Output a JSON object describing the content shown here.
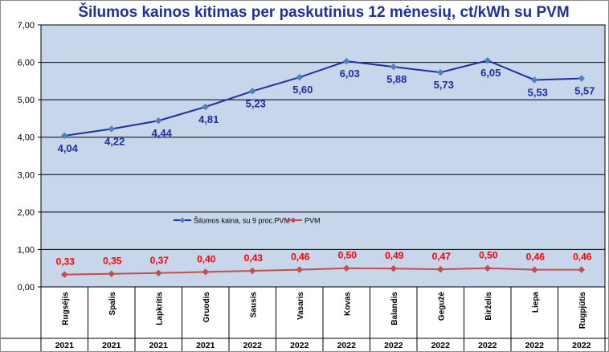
{
  "chart_data": {
    "type": "line",
    "title": "Šilumos kainos kitimas per paskutinius 12 mėnesių, ct/kWh su PVM",
    "categories": [
      "Rugsėjis",
      "Spalis",
      "Lapkritis",
      "Gruodis",
      "Sausis",
      "Vasaris",
      "Kovas",
      "Balandis",
      "Gegužė",
      "Birželis",
      "Liepa",
      "Rugpjūtis"
    ],
    "years": [
      "2021",
      "2021",
      "2021",
      "2021",
      "2022",
      "2022",
      "2022",
      "2022",
      "2022",
      "2022",
      "2022",
      "2022"
    ],
    "y_ticks": [
      "0,00",
      "1,00",
      "2,00",
      "3,00",
      "4,00",
      "5,00",
      "6,00",
      "7,00"
    ],
    "ylim": [
      0,
      7
    ],
    "grid": true,
    "legend_position": "middle-left",
    "plot_background": "#c7d6ea",
    "series": [
      {
        "name": "Šilumos kaina, su 9 proc.PVM",
        "color": "#1f2f9c",
        "marker_color": "#4f81bd",
        "values": [
          4.04,
          4.22,
          4.44,
          4.81,
          5.23,
          5.6,
          6.03,
          5.88,
          5.73,
          6.05,
          5.53,
          5.57
        ],
        "labels": [
          "4,04",
          "4,22",
          "4,44",
          "4,81",
          "5,23",
          "5,60",
          "6,03",
          "5,88",
          "5,73",
          "6,05",
          "5,53",
          "5,57"
        ],
        "label_color": "#1f2f9c"
      },
      {
        "name": "PVM",
        "color": "#c0504d",
        "marker_color": "#c0504d",
        "values": [
          0.33,
          0.35,
          0.37,
          0.4,
          0.43,
          0.46,
          0.5,
          0.49,
          0.47,
          0.5,
          0.46,
          0.46
        ],
        "labels": [
          "0,33",
          "0,35",
          "0,37",
          "0,40",
          "0,43",
          "0,46",
          "0,50",
          "0,49",
          "0,47",
          "0,50",
          "0,46",
          "0,46"
        ],
        "label_color": "#ff0000"
      }
    ]
  }
}
